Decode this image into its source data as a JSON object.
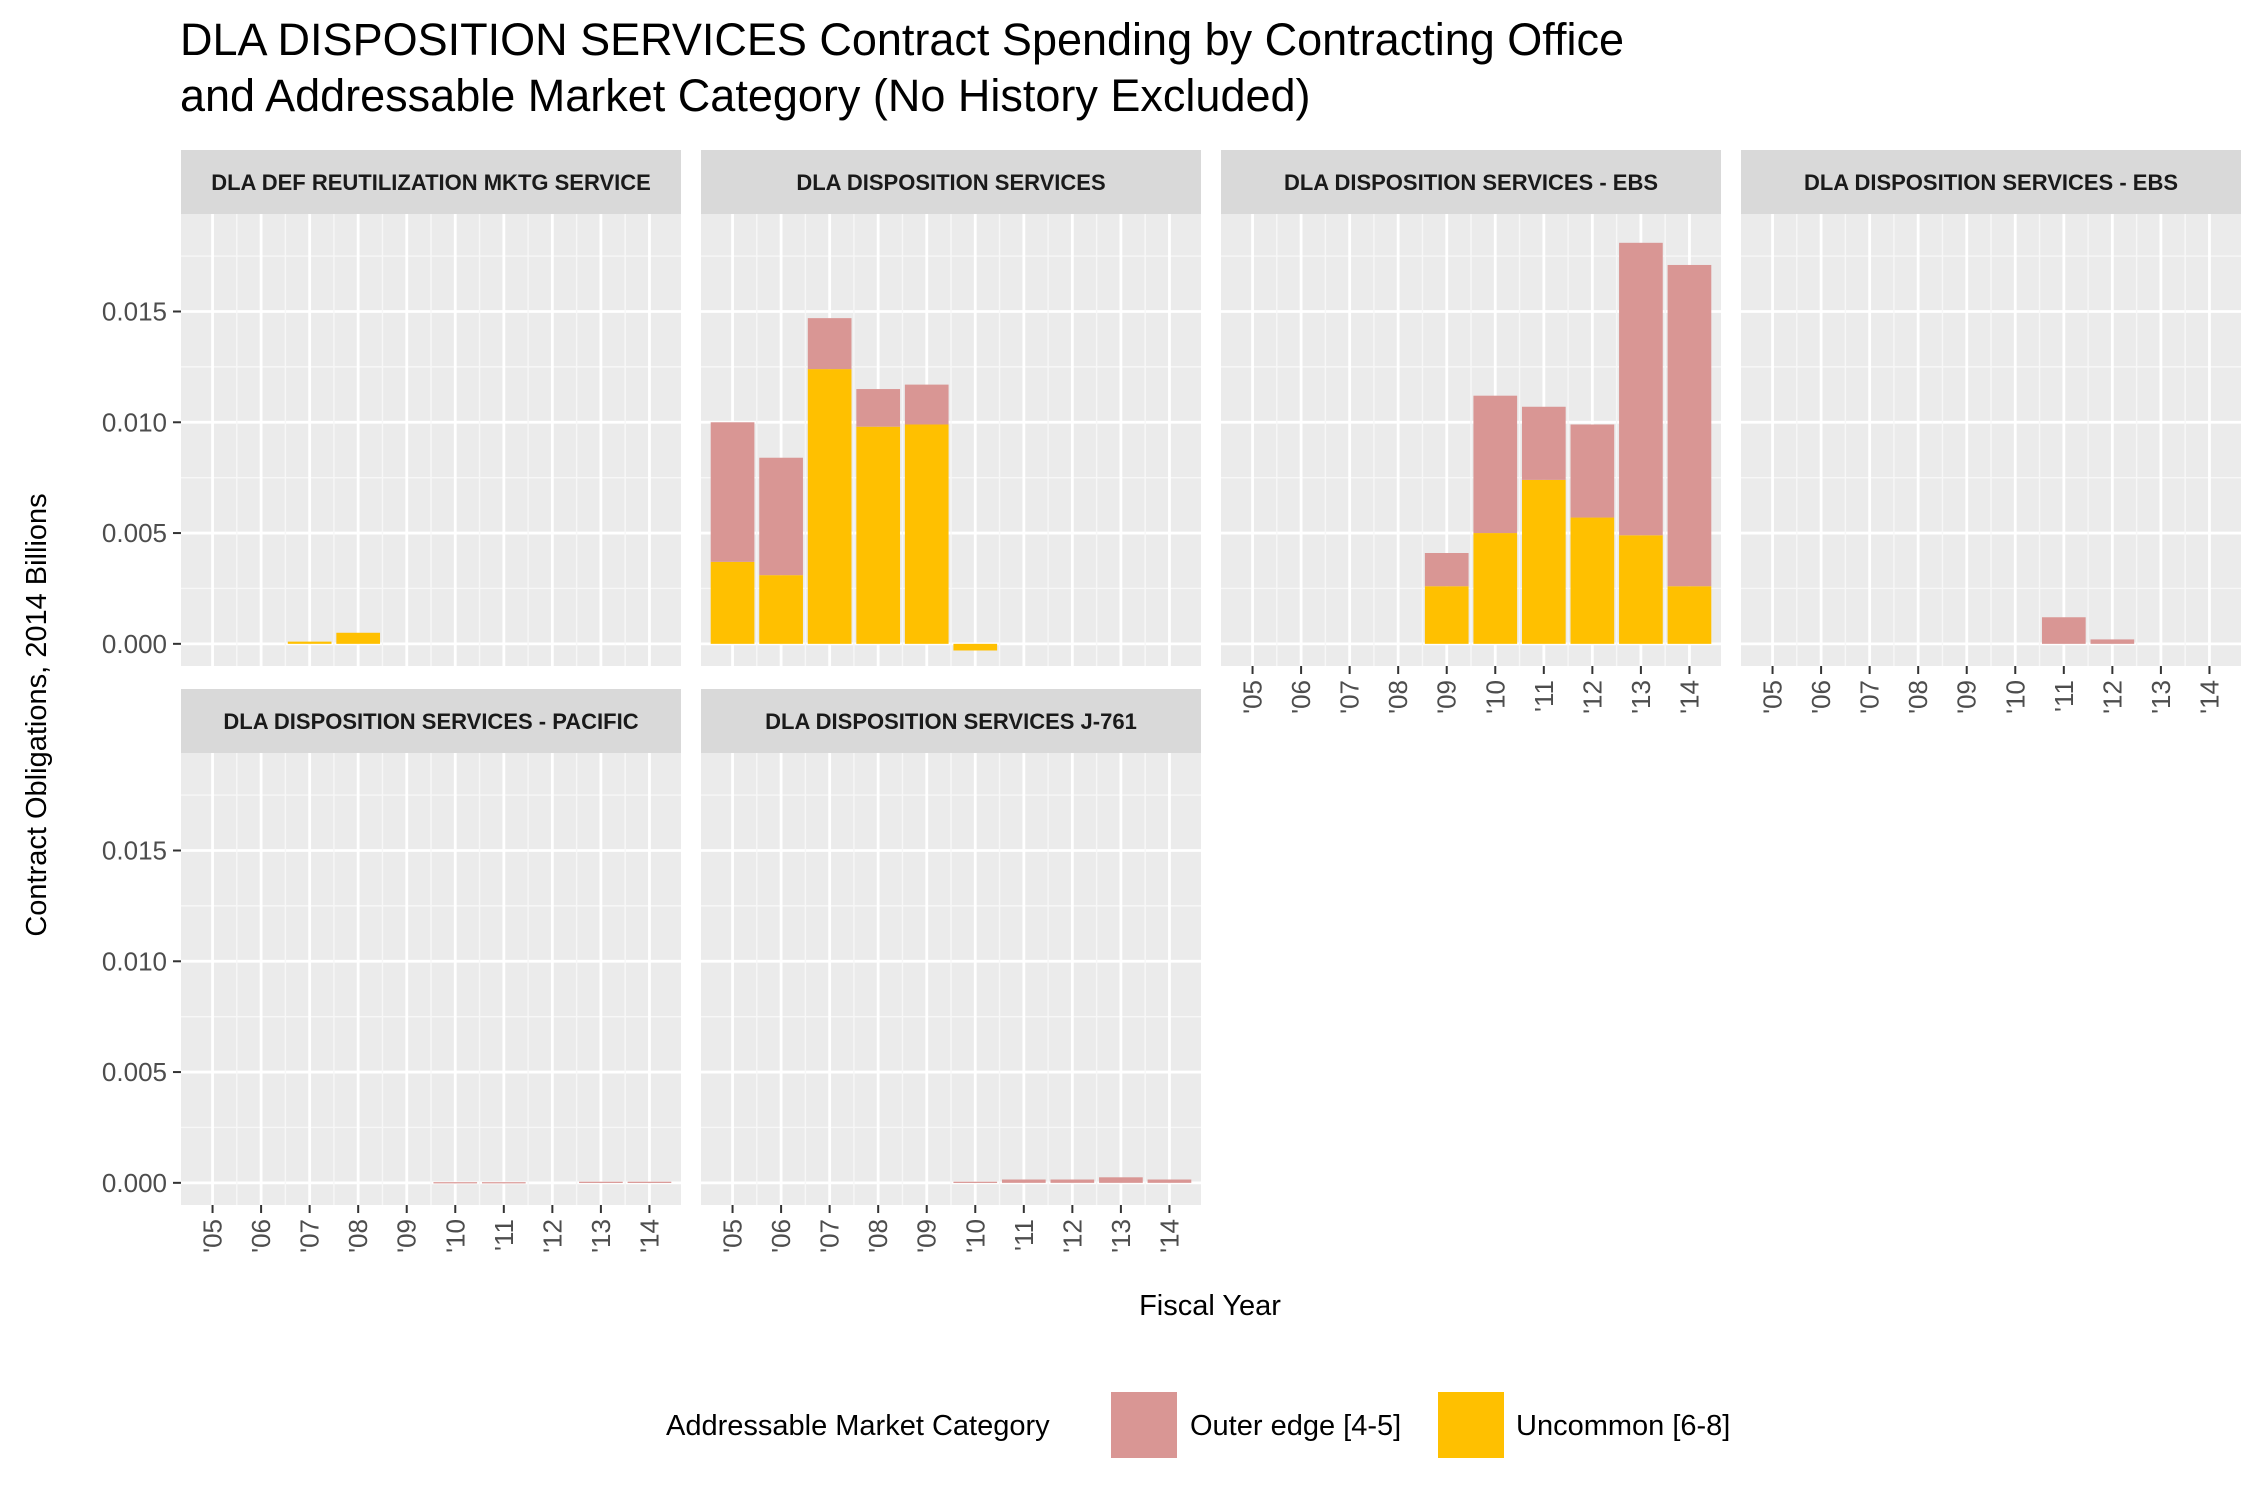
{
  "title_line1": "DLA DISPOSITION SERVICES Contract Spending by Contracting Office",
  "title_line2": "and Addressable Market Category (No History Excluded)",
  "chart_data": {
    "type": "bar",
    "stacked": true,
    "faceted": true,
    "xlabel": "Fiscal Year",
    "ylabel": "Contract Obligations, 2014 Billions",
    "ylim": [
      -0.001,
      0.0194
    ],
    "yticks": [
      "0.000",
      "0.005",
      "0.010",
      "0.015"
    ],
    "ytick_values": [
      0,
      0.005,
      0.01,
      0.015
    ],
    "categories": [
      "'05",
      "'06",
      "'07",
      "'08",
      "'09",
      "'10",
      "'11",
      "'12",
      "'13",
      "'14"
    ],
    "legend": {
      "title": "Addressable Market Category",
      "position": "bottom",
      "items": [
        {
          "name": "Outer edge [4-5]",
          "color": "#d99694"
        },
        {
          "name": "Uncommon [6-8]",
          "color": "#ffc000"
        }
      ]
    },
    "colors": {
      "Outer edge [4-5]": "#d99694",
      "Uncommon [6-8]": "#ffc000"
    },
    "panels": [
      {
        "title": "DLA DEF REUTILIZATION MKTG SERVICE",
        "series": [
          {
            "name": "Uncommon [6-8]",
            "values": [
              0,
              0,
              0.0001,
              0.0005,
              0,
              0,
              0,
              0,
              0,
              0
            ]
          },
          {
            "name": "Outer edge [4-5]",
            "values": [
              0,
              0,
              0,
              0,
              0,
              0,
              0,
              0,
              0,
              0
            ]
          }
        ]
      },
      {
        "title": "DLA DISPOSITION SERVICES",
        "series": [
          {
            "name": "Uncommon [6-8]",
            "values": [
              0.0037,
              0.0031,
              0.0124,
              0.0098,
              0.0099,
              -0.0003,
              0,
              0,
              0,
              0
            ]
          },
          {
            "name": "Outer edge [4-5]",
            "values": [
              0.0063,
              0.0053,
              0.0023,
              0.0017,
              0.0018,
              0,
              0,
              0,
              0,
              0
            ]
          }
        ]
      },
      {
        "title": "DLA DISPOSITION SERVICES -  EBS",
        "series": [
          {
            "name": "Uncommon [6-8]",
            "values": [
              0,
              0,
              0,
              0,
              0.0026,
              0.005,
              0.0074,
              0.0057,
              0.0049,
              0.0026
            ]
          },
          {
            "name": "Outer edge [4-5]",
            "values": [
              0,
              0,
              0,
              0,
              0.0015,
              0.0062,
              0.0033,
              0.0042,
              0.0132,
              0.0145
            ]
          }
        ]
      },
      {
        "title": "DLA DISPOSITION SERVICES - EBS",
        "series": [
          {
            "name": "Uncommon [6-8]",
            "values": [
              0,
              0,
              0,
              0,
              0,
              0,
              0,
              0,
              0,
              0
            ]
          },
          {
            "name": "Outer edge [4-5]",
            "values": [
              0,
              0,
              0,
              0,
              0,
              0,
              0.0012,
              0.0002,
              0,
              0
            ]
          }
        ]
      },
      {
        "title": "DLA DISPOSITION SERVICES - PACIFIC",
        "series": [
          {
            "name": "Uncommon [6-8]",
            "values": [
              0,
              0,
              0,
              0,
              0,
              0,
              0,
              0,
              0,
              0
            ]
          },
          {
            "name": "Outer edge [4-5]",
            "values": [
              0,
              0,
              0,
              0,
              0,
              3e-05,
              3e-05,
              0,
              5e-05,
              5e-05
            ]
          }
        ]
      },
      {
        "title": "DLA DISPOSITION SERVICES J-761",
        "series": [
          {
            "name": "Uncommon [6-8]",
            "values": [
              0,
              0,
              0,
              0,
              0,
              0,
              0,
              0,
              0,
              0
            ]
          },
          {
            "name": "Outer edge [4-5]",
            "values": [
              0,
              0,
              0,
              0,
              0,
              5e-05,
              0.00015,
              0.00015,
              0.00025,
              0.00015
            ]
          }
        ]
      }
    ]
  }
}
